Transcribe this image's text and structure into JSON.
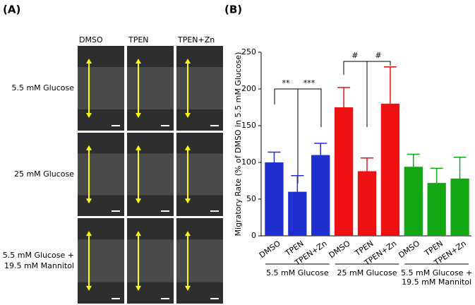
{
  "panel_a": {
    "label": "(A)",
    "columns": [
      "DMSO",
      "TPEN",
      "TPEN+Zn"
    ],
    "rows": [
      [
        "5.5 mM Glucose"
      ],
      [
        "25 mM Glucose"
      ],
      [
        "5.5 mM Glucose +",
        "19.5 mM Mannitol"
      ]
    ]
  },
  "chart_data": {
    "type": "bar",
    "panel_label": "(B)",
    "y_label": "Migratory Rate (% of DMSO in 5.5 mM Glucose)",
    "categories": [
      "DMSO",
      "TPEN",
      "TPEN+Zn",
      "DMSO",
      "TPEN",
      "TPEN+Zn",
      "DMSO",
      "TPEN",
      "TPEN+Zn"
    ],
    "values": [
      100,
      60,
      110,
      175,
      88,
      180,
      94,
      72,
      78
    ],
    "errors": [
      14,
      22,
      16,
      27,
      18,
      50,
      17,
      20,
      29
    ],
    "colors": [
      "#1f2fd0",
      "#1f2fd0",
      "#1f2fd0",
      "#ee1111",
      "#ee1111",
      "#ee1111",
      "#13a813",
      "#13a813",
      "#13a813"
    ],
    "groups": [
      [
        "5.5 mM Glucose"
      ],
      [
        "25 mM Glucose"
      ],
      [
        "5.5 mM Glucose +",
        "19.5 mM Mannitol"
      ]
    ],
    "significance": [
      "**",
      "***",
      "#",
      "#"
    ],
    "ylim": [
      0,
      250
    ],
    "yticks": [
      0,
      50,
      100,
      150,
      200,
      250
    ]
  }
}
